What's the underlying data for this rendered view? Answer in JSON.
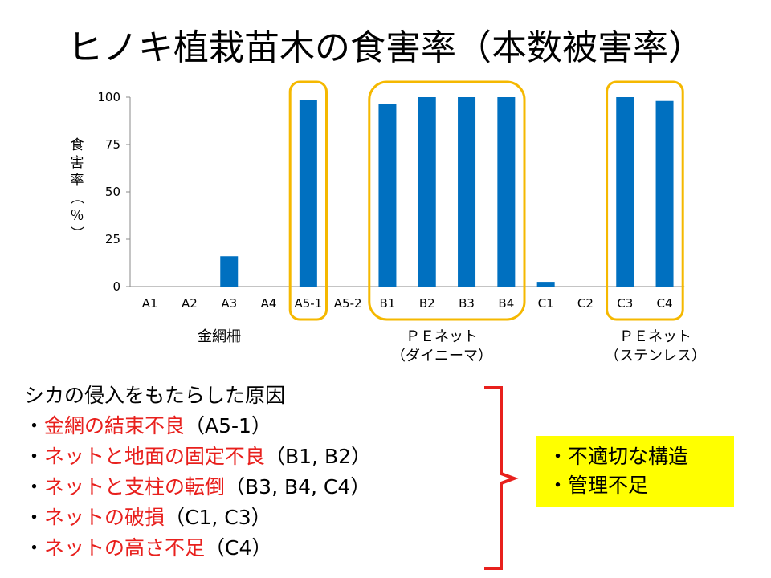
{
  "title": "ヒノキ植栽苗木の食害率（本数被害率）",
  "chart_data": {
    "type": "bar",
    "categories": [
      "A1",
      "A2",
      "A3",
      "A4",
      "A5-1",
      "A5-2",
      "B1",
      "B2",
      "B3",
      "B4",
      "C1",
      "C2",
      "C3",
      "C4"
    ],
    "values": [
      0,
      0,
      16,
      0,
      98.5,
      0,
      96.5,
      100,
      100,
      100,
      2.5,
      0,
      100,
      98
    ],
    "ylabel": "食害率（％）",
    "yticks": [
      0,
      25,
      50,
      75,
      100
    ],
    "ylim": [
      0,
      100
    ],
    "bar_color": "#0070c0",
    "highlight_color": "#f5b800",
    "highlight_groups": [
      [
        "A5-1"
      ],
      [
        "B1",
        "B2",
        "B3",
        "B4"
      ],
      [
        "C3",
        "C4"
      ]
    ],
    "group_labels": [
      {
        "lines": [
          "金網柵"
        ],
        "under": [
          "A1",
          "A2",
          "A3",
          "A4",
          "A5-1",
          "A5-2"
        ]
      },
      {
        "lines": [
          "ＰＥネット",
          "（ダイニーマ）"
        ],
        "under": [
          "B1",
          "B2",
          "B3",
          "B4"
        ]
      },
      {
        "lines": [
          "ＰＥネット",
          "（ステンレス）"
        ],
        "under": [
          "C3",
          "C4"
        ]
      }
    ]
  },
  "causes": {
    "heading": "シカの侵入をもたらした原因",
    "items": [
      {
        "bullet": "・",
        "red": "金網の結束不良",
        "plain": "（A5-1）"
      },
      {
        "bullet": "・",
        "red": "ネットと地面の固定不良",
        "plain": "（B1, B2）"
      },
      {
        "bullet": "・",
        "red": "ネットと支柱の転倒",
        "plain": "（B3, B4, C4）"
      },
      {
        "bullet": "・",
        "red": "ネットの破損",
        "plain": "（C1, C3）"
      },
      {
        "bullet": "・",
        "red": "ネットの高さ不足",
        "plain": "（C4）"
      }
    ]
  },
  "bracket_color": "#e8201d",
  "summary": {
    "lines": [
      "・不適切な構造",
      "・管理不足"
    ],
    "background": "#ffff00"
  }
}
